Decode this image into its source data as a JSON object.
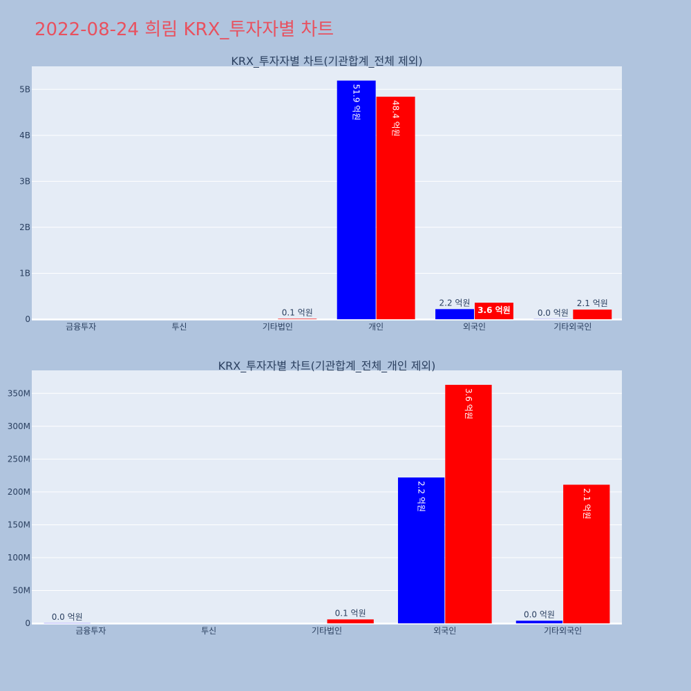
{
  "title": "2022-08-24 희림 KRX_투자자별 차트",
  "colors": {
    "buy": "#0000ff",
    "sell": "#ff0000",
    "plot_bg": "#e5ecf6",
    "page_bg": "#b0c4de",
    "title": "#e8515f"
  },
  "chart_data": [
    {
      "type": "bar",
      "title": "KRX_투자자별 차트(기관합계_전체 제외)",
      "categories": [
        "금융투자",
        "투신",
        "기타법인",
        "개인",
        "외국인",
        "기타외국인"
      ],
      "series": [
        {
          "color": "#0000ff",
          "values": [
            0,
            0,
            0,
            5190000000,
            220000000,
            3000000
          ],
          "labels": [
            "",
            "",
            "",
            "51.9 억원",
            "2.2 억원",
            "0.0 억원"
          ]
        },
        {
          "color": "#ff0000",
          "values": [
            0,
            0,
            10000000,
            4840000000,
            360000000,
            210000000
          ],
          "labels": [
            "",
            "",
            "0.1 억원",
            "48.4 억원",
            "3.6 억원",
            "2.1 억원"
          ]
        }
      ],
      "ylim": [
        -30000000,
        5500000000
      ],
      "yticks": [
        0,
        1000000000,
        2000000000,
        3000000000,
        4000000000,
        5000000000
      ],
      "ytick_labels": [
        "0",
        "1B",
        "2B",
        "3B",
        "4B",
        "5B"
      ],
      "grid": true
    },
    {
      "type": "bar",
      "title": "KRX_투자자별 차트(기관합계_전체_개인 제외)",
      "categories": [
        "금융투자",
        "투신",
        "기타법인",
        "외국인",
        "기타외국인"
      ],
      "series": [
        {
          "color": "#0000ff",
          "values": [
            300000,
            0,
            0,
            222000000,
            4000000
          ],
          "labels": [
            "0.0 억원",
            "",
            "",
            "2.2 억원",
            "0.0 억원"
          ]
        },
        {
          "color": "#ff0000",
          "values": [
            0,
            0,
            6000000,
            363000000,
            211000000
          ],
          "labels": [
            "",
            "",
            "0.1 억원",
            "3.6 억원",
            "2.1 억원"
          ]
        }
      ],
      "ylim": [
        -2000000,
        385000000
      ],
      "yticks": [
        0,
        50000000,
        100000000,
        150000000,
        200000000,
        250000000,
        300000000,
        350000000
      ],
      "ytick_labels": [
        "0",
        "50M",
        "100M",
        "150M",
        "200M",
        "250M",
        "300M",
        "350M"
      ],
      "grid": true
    }
  ]
}
